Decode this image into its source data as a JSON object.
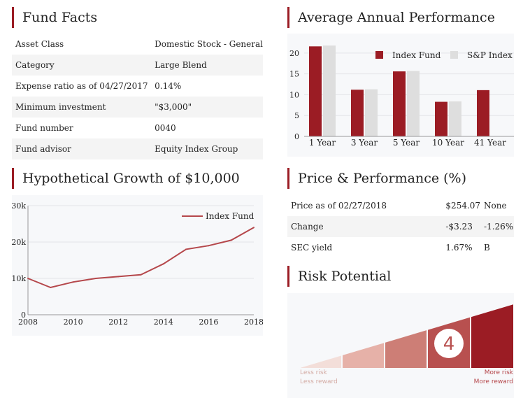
{
  "fund_facts": {
    "title": "Fund Facts",
    "rows": [
      {
        "label": "Asset Class",
        "value": "Domestic Stock - General"
      },
      {
        "label": "Category",
        "value": "Large Blend"
      },
      {
        "label": "Expense ratio as of 04/27/2017",
        "value": "0.14%"
      },
      {
        "label": "Minimum investment",
        "value": "\"$3,000\""
      },
      {
        "label": "Fund number",
        "value": "0040"
      },
      {
        "label": "Fund advisor",
        "value": "Equity Index Group"
      }
    ]
  },
  "avg_perf": {
    "title": "Average Annual Performance",
    "legend": [
      "Index Fund",
      "S&P Index"
    ]
  },
  "growth": {
    "title": "Hypothetical Growth of $10,000",
    "legend": "Index Fund"
  },
  "price_perf": {
    "title": "Price & Performance (%)",
    "rows": [
      {
        "label": "Price as of 02/27/2018",
        "value": "$254.07",
        "extra": "None"
      },
      {
        "label": "Change",
        "value": "-$3.23",
        "extra": "-1.26%"
      },
      {
        "label": "SEC yield",
        "value": "1.67%",
        "extra": "B"
      }
    ]
  },
  "risk": {
    "title": "Risk Potential",
    "level": 4,
    "levels": 5,
    "low_label_1": "Less risk",
    "low_label_2": "Less reward",
    "high_label_1": "More risk",
    "high_label_2": "More reward"
  },
  "colors": {
    "accent": "#9b1c24",
    "secondary": "#dedede",
    "line": "#b5474b",
    "risk_fills": [
      "#f3ded9",
      "#e6b1a8",
      "#cd7e76",
      "#b8504f",
      "#9b1c24"
    ]
  },
  "chart_data": [
    {
      "type": "bar",
      "title": "Average Annual Performance",
      "categories": [
        "1 Year",
        "3 Year",
        "5 Year",
        "10 Year",
        "41 Year"
      ],
      "series": [
        {
          "name": "Index Fund",
          "values": [
            21.6,
            11.2,
            15.6,
            8.3,
            11.1
          ]
        },
        {
          "name": "S&P Index",
          "values": [
            21.8,
            11.3,
            15.7,
            8.4,
            null
          ]
        }
      ],
      "yticks": [
        0,
        5,
        10,
        15,
        20
      ],
      "ylim": [
        0,
        24
      ],
      "legend": "top-right"
    },
    {
      "type": "line",
      "title": "Hypothetical Growth of $10,000",
      "x": [
        2008,
        2009,
        2010,
        2011,
        2012,
        2013,
        2014,
        2015,
        2016,
        2017,
        2018
      ],
      "series": [
        {
          "name": "Index Fund",
          "values": [
            10000,
            7500,
            9000,
            10000,
            10500,
            11000,
            14000,
            18000,
            19000,
            20500,
            24000
          ]
        }
      ],
      "xticks": [
        2008,
        2010,
        2012,
        2014,
        2016,
        2018
      ],
      "yticks": [
        0,
        10000,
        20000,
        30000
      ],
      "ytick_labels": [
        "0",
        "10k",
        "20k",
        "30k"
      ],
      "xlim": [
        2008,
        2018
      ],
      "ylim": [
        0,
        30000
      ],
      "legend": "top-right"
    }
  ]
}
